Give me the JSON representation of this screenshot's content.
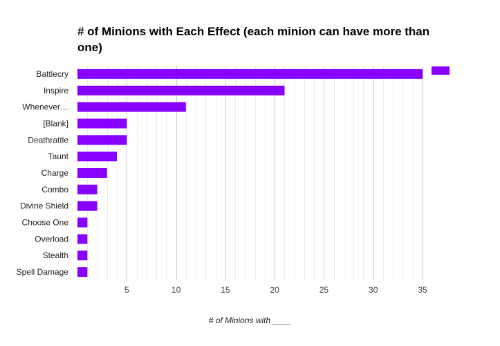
{
  "chart_data": {
    "type": "bar",
    "orientation": "horizontal",
    "title": "# of Minions with Each Effect (each minion can have more than one)",
    "xlabel": "# of Minions with ____",
    "ylabel": "",
    "categories": [
      "Battlecry",
      "Inspire",
      "Whenever…",
      "[Blank]",
      "Deathrattle",
      "Taunt",
      "Charge",
      "Combo",
      "Divine Shield",
      "Choose One",
      "Overload",
      "Stealth",
      "Spell Damage"
    ],
    "values": [
      35,
      21,
      11,
      5,
      5,
      4,
      3,
      2,
      2,
      1,
      1,
      1,
      1
    ],
    "xlim": [
      0,
      35
    ],
    "xticks": [
      5,
      10,
      15,
      20,
      25,
      30,
      35
    ],
    "minor_grid_step": 1,
    "grid": true,
    "legend": "top-right",
    "colors": {
      "bar": "#8800ff",
      "major_grid": "#cccccc",
      "minor_grid": "#ebebeb",
      "text": "#222222"
    }
  }
}
